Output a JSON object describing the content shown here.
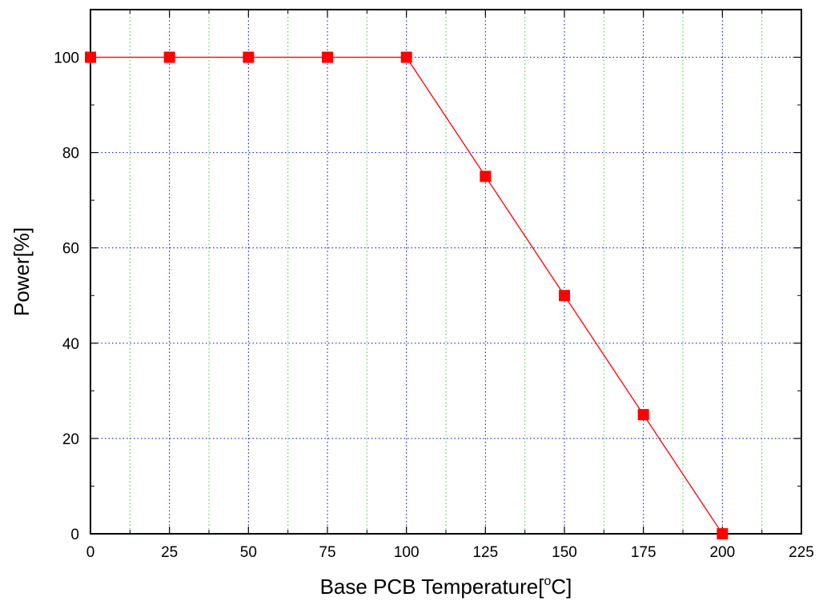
{
  "chart_data": {
    "type": "line",
    "xlabel": "Base PCB Temperature[",
    "xlabel_unit_sup": "o",
    "xlabel_unit": "C]",
    "ylabel": "Power[%]",
    "xlim": [
      0,
      225
    ],
    "ylim": [
      0,
      110
    ],
    "x_ticks": [
      0,
      25,
      50,
      75,
      100,
      125,
      150,
      175,
      200,
      225
    ],
    "x_tick_labels": [
      "0",
      "25",
      "50",
      "75",
      "100",
      "125",
      "150",
      "175",
      "200",
      "225"
    ],
    "x_minor_gridlines": [
      12.5,
      37.5,
      62.5,
      87.5,
      112.5,
      137.5,
      162.5,
      187.5,
      212.5
    ],
    "y_ticks": [
      0,
      20,
      40,
      60,
      80,
      100
    ],
    "y_tick_labels": [
      "0",
      "20",
      "40",
      "60",
      "80",
      "100"
    ],
    "grid": true,
    "colors": {
      "series": "#ff0000",
      "major_grid": "#0000cc",
      "minor_grid": "#33cc33",
      "axes": "#000000"
    },
    "series": [
      {
        "marker": "square",
        "x": [
          0,
          25,
          50,
          75,
          100,
          125,
          150,
          175,
          200
        ],
        "y": [
          100,
          100,
          100,
          100,
          100,
          75,
          50,
          25,
          0
        ]
      }
    ]
  }
}
